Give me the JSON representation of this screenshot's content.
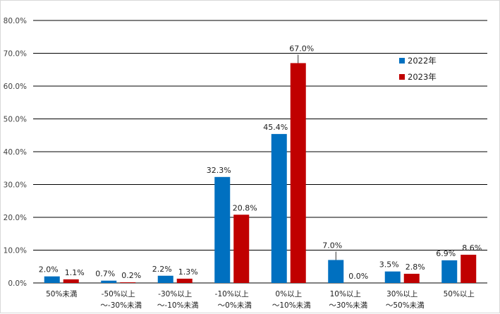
{
  "chart_data": {
    "type": "bar",
    "categories": [
      [
        "50%未満"
      ],
      [
        "-50%以上",
        "～-30%未満"
      ],
      [
        "-30%以上",
        "～-10%未満"
      ],
      [
        "-10%以上",
        "～0%未満"
      ],
      [
        "0%以上",
        "～10%未満"
      ],
      [
        "10%以上",
        "～30%未満"
      ],
      [
        "30%以上",
        "～50%未満"
      ],
      [
        "50%以上"
      ]
    ],
    "series": [
      {
        "name": "2022年",
        "color": "#0070c0",
        "values": [
          2.0,
          0.7,
          2.2,
          32.3,
          45.4,
          7.0,
          3.5,
          6.9
        ],
        "labels": [
          "2.0%",
          "0.7%",
          "2.2%",
          "32.3%",
          "45.4%",
          "7.0%",
          "3.5%",
          "6.9%"
        ]
      },
      {
        "name": "2023年",
        "color": "#c00000",
        "values": [
          1.1,
          0.2,
          1.3,
          20.8,
          67.0,
          0.0,
          2.8,
          8.6
        ],
        "labels": [
          "1.1%",
          "0.2%",
          "1.3%",
          "20.8%",
          "67.0%",
          "0.0%",
          "2.8%",
          "8.6%"
        ]
      }
    ],
    "y_ticks": [
      "0.0%",
      "10.0%",
      "20.0%",
      "30.0%",
      "40.0%",
      "50.0%",
      "60.0%",
      "70.0%",
      "80.0%"
    ],
    "ylim": [
      0,
      80
    ],
    "grid": true,
    "legend_position": "top-right",
    "title": "",
    "xlabel": "",
    "ylabel": ""
  }
}
